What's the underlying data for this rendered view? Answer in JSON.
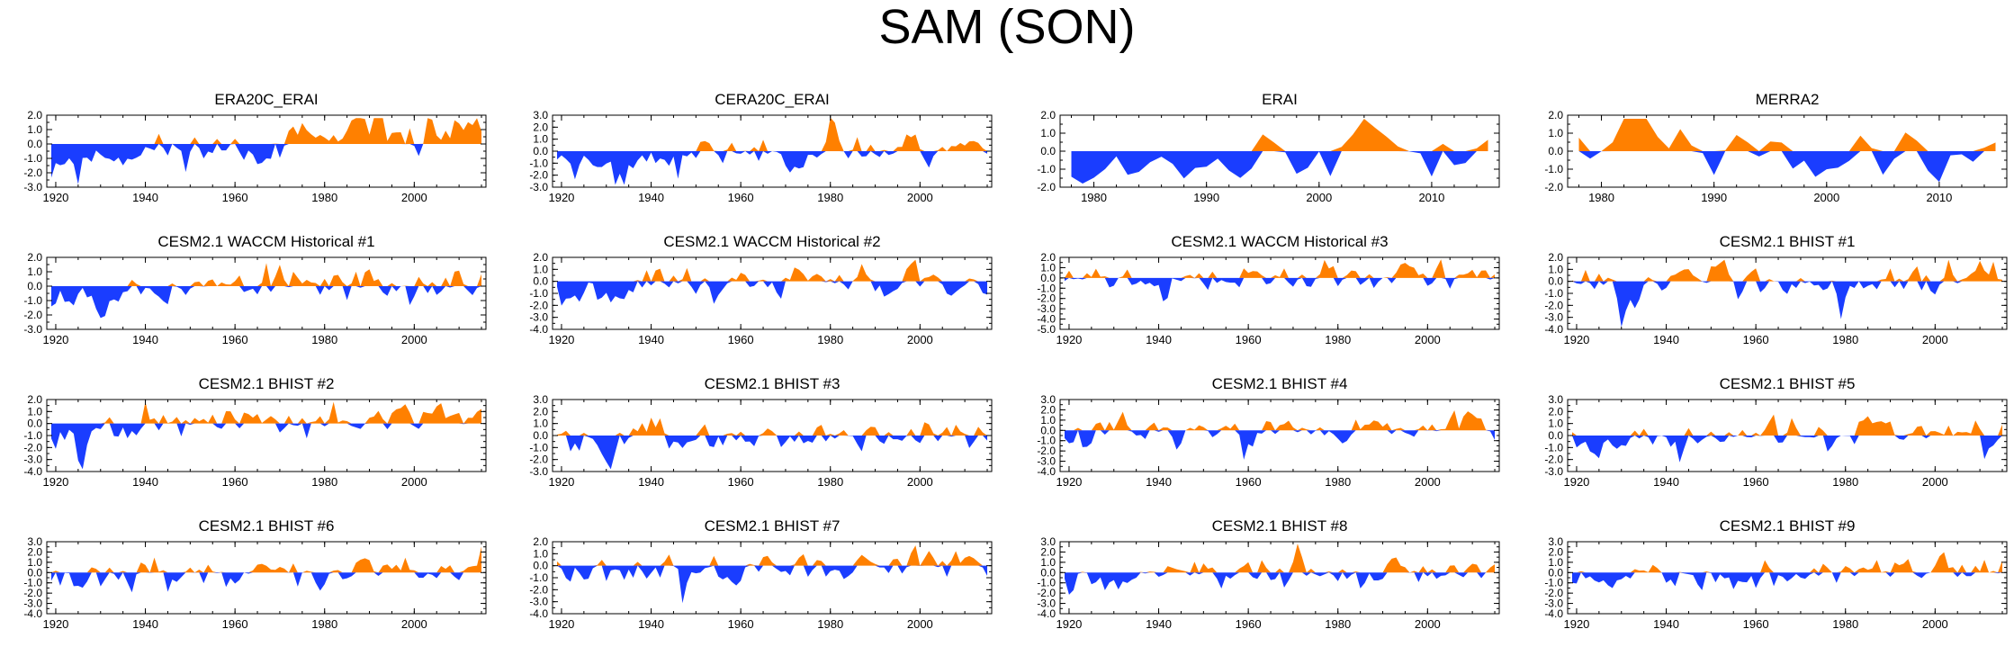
{
  "figure_title": "SAM (SON)",
  "colors": {
    "positive": "#ff8000",
    "negative": "#1a3dff",
    "axis": "#000000"
  },
  "chart_data": [
    {
      "title": "ERA20C_ERAI",
      "type": "area",
      "x_range": [
        1918,
        2016
      ],
      "xticks": [
        1920,
        1940,
        1960,
        1980,
        2000
      ],
      "ylim": [
        -3,
        2
      ],
      "yticks": [
        2,
        1,
        0,
        -1,
        -2,
        -3
      ],
      "series_seed": 11,
      "amplitude": 0.95,
      "trend": 0.9
    },
    {
      "title": "CERA20C_ERAI",
      "type": "area",
      "x_range": [
        1918,
        2016
      ],
      "xticks": [
        1920,
        1940,
        1960,
        1980,
        2000
      ],
      "ylim": [
        -3,
        3
      ],
      "yticks": [
        3,
        2,
        1,
        0,
        -1,
        -2,
        -3
      ],
      "series_seed": 23,
      "amplitude": 0.9,
      "trend": 0.7
    },
    {
      "title": "ERAI",
      "type": "area",
      "x_range": [
        1977,
        2016
      ],
      "xticks": [
        1980,
        1990,
        2000,
        2010
      ],
      "ylim": [
        -2,
        2
      ],
      "yticks": [
        2,
        1,
        0,
        -1,
        -2
      ],
      "series_seed": 37,
      "amplitude": 1.1,
      "trend": 0.2
    },
    {
      "title": "MERRA2",
      "type": "area",
      "x_range": [
        1977,
        2016
      ],
      "xticks": [
        1980,
        1990,
        2000,
        2010
      ],
      "ylim": [
        -2,
        2
      ],
      "yticks": [
        2,
        1,
        0,
        -1,
        -2
      ],
      "series_seed": 41,
      "amplitude": 1.1,
      "trend": 0.2
    },
    {
      "title": "CESM2.1 WACCM Historical #1",
      "type": "area",
      "x_range": [
        1918,
        2016
      ],
      "xticks": [
        1920,
        1940,
        1960,
        1980,
        2000
      ],
      "ylim": [
        -3,
        2
      ],
      "yticks": [
        2,
        1,
        0,
        -1,
        -2,
        -3
      ],
      "series_seed": 53,
      "amplitude": 1.0,
      "trend": 0.3
    },
    {
      "title": "CESM2.1 WACCM Historical #2",
      "type": "area",
      "x_range": [
        1918,
        2016
      ],
      "xticks": [
        1920,
        1940,
        1960,
        1980,
        2000
      ],
      "ylim": [
        -4,
        2
      ],
      "yticks": [
        2,
        1,
        0,
        -1,
        -2,
        -3,
        -4
      ],
      "series_seed": 67,
      "amplitude": 1.0,
      "trend": 0.4
    },
    {
      "title": "CESM2.1 WACCM Historical #3",
      "type": "area",
      "x_range": [
        1918,
        2016
      ],
      "xticks": [
        1920,
        1940,
        1960,
        1980,
        2000
      ],
      "ylim": [
        -5,
        2
      ],
      "yticks": [
        2,
        1,
        0,
        -1,
        -2,
        -3,
        -4,
        -5
      ],
      "series_seed": 71,
      "amplitude": 1.0,
      "trend": 0.4
    },
    {
      "title": "CESM2.1 BHIST #1",
      "type": "area",
      "x_range": [
        1918,
        2016
      ],
      "xticks": [
        1920,
        1940,
        1960,
        1980,
        2000
      ],
      "ylim": [
        -4,
        2
      ],
      "yticks": [
        2,
        1,
        0,
        -1,
        -2,
        -3,
        -4
      ],
      "series_seed": 83,
      "amplitude": 1.0,
      "trend": 0.4
    },
    {
      "title": "CESM2.1 BHIST #2",
      "type": "area",
      "x_range": [
        1918,
        2016
      ],
      "xticks": [
        1920,
        1940,
        1960,
        1980,
        2000
      ],
      "ylim": [
        -4,
        2
      ],
      "yticks": [
        2,
        1,
        0,
        -1,
        -2,
        -3,
        -4
      ],
      "series_seed": 97,
      "amplitude": 1.0,
      "trend": 0.3
    },
    {
      "title": "CESM2.1 BHIST #3",
      "type": "area",
      "x_range": [
        1918,
        2016
      ],
      "xticks": [
        1920,
        1940,
        1960,
        1980,
        2000
      ],
      "ylim": [
        -3,
        3
      ],
      "yticks": [
        3,
        2,
        1,
        0,
        -1,
        -2,
        -3
      ],
      "series_seed": 101,
      "amplitude": 1.0,
      "trend": 0.3
    },
    {
      "title": "CESM2.1 BHIST #4",
      "type": "area",
      "x_range": [
        1918,
        2016
      ],
      "xticks": [
        1920,
        1940,
        1960,
        1980,
        2000
      ],
      "ylim": [
        -4,
        3
      ],
      "yticks": [
        3,
        2,
        1,
        0,
        -1,
        -2,
        -3,
        -4
      ],
      "series_seed": 113,
      "amplitude": 1.0,
      "trend": 0.3
    },
    {
      "title": "CESM2.1 BHIST #5",
      "type": "area",
      "x_range": [
        1918,
        2016
      ],
      "xticks": [
        1920,
        1940,
        1960,
        1980,
        2000
      ],
      "ylim": [
        -3,
        3
      ],
      "yticks": [
        3,
        2,
        1,
        0,
        -1,
        -2,
        -3
      ],
      "series_seed": 127,
      "amplitude": 1.0,
      "trend": 0.3
    },
    {
      "title": "CESM2.1 BHIST #6",
      "type": "area",
      "x_range": [
        1918,
        2016
      ],
      "xticks": [
        1920,
        1940,
        1960,
        1980,
        2000
      ],
      "ylim": [
        -4,
        3
      ],
      "yticks": [
        3,
        2,
        1,
        0,
        -1,
        -2,
        -3,
        -4
      ],
      "series_seed": 131,
      "amplitude": 1.0,
      "trend": 0.3
    },
    {
      "title": "CESM2.1 BHIST #7",
      "type": "area",
      "x_range": [
        1918,
        2016
      ],
      "xticks": [
        1920,
        1940,
        1960,
        1980,
        2000
      ],
      "ylim": [
        -4,
        2
      ],
      "yticks": [
        2,
        1,
        0,
        -1,
        -2,
        -3,
        -4
      ],
      "series_seed": 149,
      "amplitude": 1.0,
      "trend": 0.3
    },
    {
      "title": "CESM2.1 BHIST #8",
      "type": "area",
      "x_range": [
        1918,
        2016
      ],
      "xticks": [
        1920,
        1940,
        1960,
        1980,
        2000
      ],
      "ylim": [
        -4,
        3
      ],
      "yticks": [
        3,
        2,
        1,
        0,
        -1,
        -2,
        -3,
        -4
      ],
      "series_seed": 157,
      "amplitude": 1.0,
      "trend": 0.3
    },
    {
      "title": "CESM2.1 BHIST #9",
      "type": "area",
      "x_range": [
        1918,
        2016
      ],
      "xticks": [
        1920,
        1940,
        1960,
        1980,
        2000
      ],
      "ylim": [
        -4,
        3
      ],
      "yticks": [
        3,
        2,
        1,
        0,
        -1,
        -2,
        -3,
        -4
      ],
      "series_seed": 163,
      "amplitude": 1.0,
      "trend": 0.3
    }
  ]
}
